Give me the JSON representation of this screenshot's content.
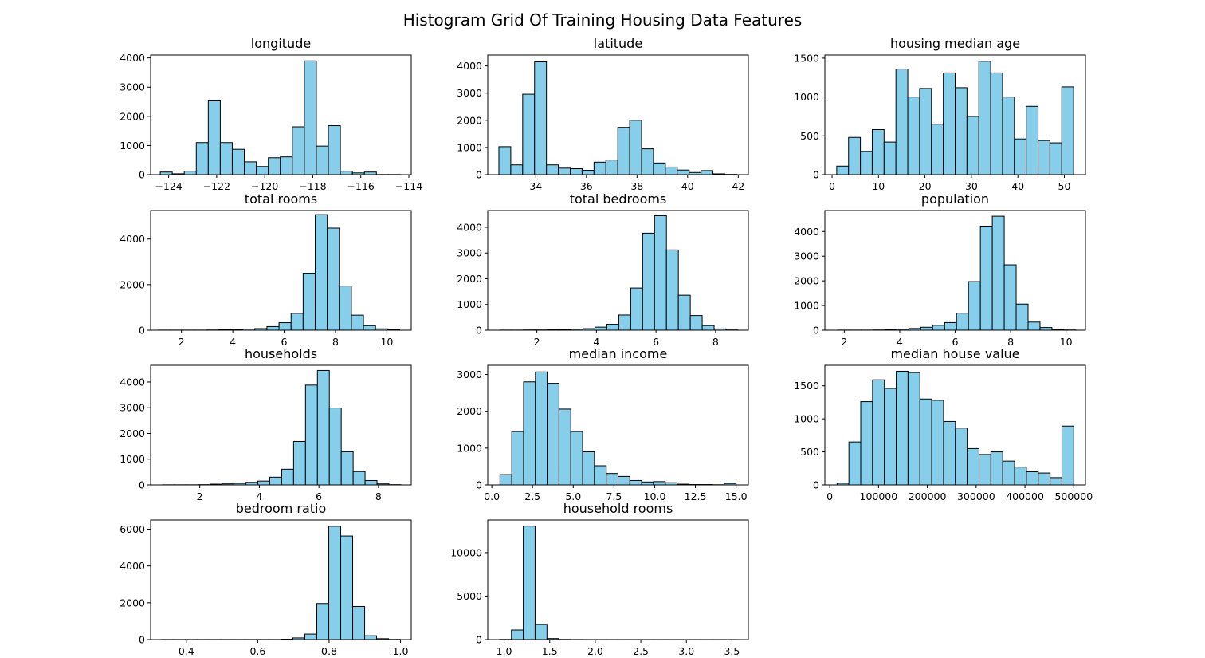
{
  "suptitle": "Histogram Grid Of Training Housing Data Features",
  "colors": {
    "bar_fill": "#87CEEB",
    "bar_edge": "#000000"
  },
  "chart_data": [
    {
      "type": "bar",
      "title": "longitude",
      "xlim": [
        -124.75,
        -113.9
      ],
      "ylim": [
        0,
        4100
      ],
      "xticks": [
        -124,
        -122,
        -120,
        -118,
        -116,
        -114
      ],
      "xtick_labels": [
        "−124",
        "−122",
        "−120",
        "−118",
        "−116",
        "−114"
      ],
      "yticks": [
        0,
        1000,
        2000,
        3000,
        4000
      ],
      "bin_start": -124.35,
      "bin_width": 0.5,
      "values": [
        90,
        30,
        120,
        1100,
        2530,
        1100,
        870,
        440,
        280,
        580,
        610,
        1640,
        3900,
        980,
        1680,
        120,
        60,
        90,
        5,
        5
      ]
    },
    {
      "type": "bar",
      "title": "latitude",
      "xlim": [
        32.1,
        42.4
      ],
      "ylim": [
        0,
        4400
      ],
      "xticks": [
        34,
        36,
        38,
        40,
        42
      ],
      "xtick_labels": [
        "34",
        "36",
        "38",
        "40",
        "42"
      ],
      "yticks": [
        0,
        1000,
        2000,
        3000,
        4000
      ],
      "bin_start": 32.54,
      "bin_width": 0.47,
      "values": [
        1030,
        360,
        2960,
        4150,
        360,
        240,
        220,
        160,
        460,
        540,
        1740,
        2000,
        950,
        430,
        280,
        170,
        80,
        150,
        30,
        10
      ]
    },
    {
      "type": "bar",
      "title": "housing median age",
      "xlim": [
        -1.55,
        54.55
      ],
      "ylim": [
        0,
        1540
      ],
      "xticks": [
        0,
        10,
        20,
        30,
        40,
        50
      ],
      "xtick_labels": [
        "0",
        "10",
        "20",
        "30",
        "40",
        "50"
      ],
      "yticks": [
        0,
        500,
        1000,
        1500
      ],
      "bin_start": 1,
      "bin_width": 2.55,
      "values": [
        110,
        480,
        300,
        580,
        420,
        1360,
        1000,
        1110,
        650,
        1310,
        1120,
        750,
        1460,
        1310,
        1000,
        460,
        880,
        440,
        410,
        1130
      ]
    },
    {
      "type": "bar",
      "title": "total rooms",
      "xlim": [
        0.8,
        10.95
      ],
      "ylim": [
        0,
        5250
      ],
      "xticks": [
        2,
        4,
        6,
        8,
        10
      ],
      "xtick_labels": [
        "2",
        "4",
        "6",
        "8",
        "10"
      ],
      "yticks": [
        0,
        2000,
        4000
      ],
      "bin_start": 1.1,
      "bin_width": 0.47,
      "values": [
        5,
        5,
        5,
        5,
        10,
        20,
        30,
        50,
        70,
        160,
        330,
        740,
        2500,
        5070,
        4480,
        1940,
        660,
        200,
        60,
        20
      ]
    },
    {
      "type": "bar",
      "title": "total bedrooms",
      "xlim": [
        0.35,
        9.1
      ],
      "ylim": [
        0,
        4650
      ],
      "xticks": [
        2,
        4,
        6,
        8
      ],
      "xtick_labels": [
        "2",
        "4",
        "6",
        "8"
      ],
      "yticks": [
        0,
        1000,
        2000,
        3000,
        4000
      ],
      "bin_start": 0.75,
      "bin_width": 0.4,
      "values": [
        5,
        5,
        10,
        10,
        20,
        30,
        40,
        60,
        120,
        230,
        590,
        1640,
        3770,
        4450,
        3120,
        1360,
        570,
        180,
        50,
        10
      ]
    },
    {
      "type": "bar",
      "title": "population",
      "xlim": [
        1.3,
        10.7
      ],
      "ylim": [
        0,
        4850
      ],
      "xticks": [
        2,
        4,
        6,
        8,
        10
      ],
      "xtick_labels": [
        "2",
        "4",
        "6",
        "8",
        "10"
      ],
      "yticks": [
        0,
        1000,
        2000,
        3000,
        4000
      ],
      "bin_start": 1.75,
      "bin_width": 0.43,
      "values": [
        5,
        5,
        5,
        10,
        20,
        40,
        70,
        120,
        200,
        310,
        690,
        1970,
        4220,
        4620,
        2650,
        1060,
        330,
        110,
        30,
        10
      ]
    },
    {
      "type": "bar",
      "title": "households",
      "xlim": [
        0.35,
        9.1
      ],
      "ylim": [
        0,
        4650
      ],
      "xticks": [
        2,
        4,
        6,
        8
      ],
      "xtick_labels": [
        "2",
        "4",
        "6",
        "8"
      ],
      "yticks": [
        0,
        1000,
        2000,
        3000,
        4000
      ],
      "bin_start": 0.75,
      "bin_width": 0.4,
      "values": [
        5,
        5,
        5,
        10,
        30,
        40,
        60,
        100,
        150,
        300,
        610,
        1690,
        3880,
        4450,
        2990,
        1290,
        520,
        170,
        40,
        10
      ]
    },
    {
      "type": "bar",
      "title": "median income",
      "xlim": [
        -0.25,
        15.75
      ],
      "ylim": [
        0,
        3250
      ],
      "xticks": [
        0.0,
        2.5,
        5.0,
        7.5,
        10.0,
        12.5,
        15.0
      ],
      "xtick_labels": [
        "0.0",
        "2.5",
        "5.0",
        "7.5",
        "10.0",
        "12.5",
        "15.0"
      ],
      "yticks": [
        0,
        1000,
        2000,
        3000
      ],
      "bin_start": 0.5,
      "bin_width": 0.725,
      "values": [
        280,
        1450,
        2800,
        3070,
        2760,
        2060,
        1450,
        900,
        520,
        310,
        230,
        120,
        80,
        90,
        60,
        20,
        10,
        10,
        5,
        40
      ]
    },
    {
      "type": "bar",
      "title": "median house value",
      "xlim": [
        -10000,
        524000
      ],
      "ylim": [
        0,
        1810
      ],
      "xticks": [
        0,
        100000,
        200000,
        300000,
        400000,
        500000
      ],
      "xtick_labels": [
        "0",
        "100000",
        "200000",
        "300000",
        "400000",
        "500000"
      ],
      "yticks": [
        0,
        500,
        1000,
        1500
      ],
      "bin_start": 15000,
      "bin_width": 24250,
      "values": [
        25,
        650,
        1260,
        1590,
        1460,
        1720,
        1700,
        1300,
        1280,
        960,
        860,
        550,
        460,
        500,
        360,
        270,
        200,
        180,
        110,
        890
      ]
    },
    {
      "type": "bar",
      "title": "bedroom ratio",
      "xlim": [
        0.3,
        1.03
      ],
      "ylim": [
        0,
        6500
      ],
      "xticks": [
        0.4,
        0.6,
        0.8,
        1.0
      ],
      "xtick_labels": [
        "0.4",
        "0.6",
        "0.8",
        "1.0"
      ],
      "yticks": [
        0,
        2000,
        4000,
        6000
      ],
      "bin_start": 0.33,
      "bin_width": 0.0335,
      "values": [
        5,
        5,
        5,
        5,
        5,
        5,
        5,
        5,
        5,
        5,
        20,
        90,
        300,
        1960,
        6160,
        5630,
        1800,
        210,
        50,
        10
      ]
    },
    {
      "type": "bar",
      "title": "household rooms",
      "xlim": [
        0.82,
        3.68
      ],
      "ylim": [
        0,
        13750
      ],
      "xticks": [
        1.0,
        1.5,
        2.0,
        2.5,
        3.0,
        3.5
      ],
      "xtick_labels": [
        "1.0",
        "1.5",
        "2.0",
        "2.5",
        "3.0",
        "3.5"
      ],
      "yticks": [
        0,
        5000,
        10000
      ],
      "bin_start": 0.95,
      "bin_width": 0.13,
      "values": [
        20,
        1100,
        13050,
        1760,
        120,
        20,
        10,
        5,
        5,
        5,
        5,
        5,
        5,
        5,
        5,
        5,
        5,
        5,
        5,
        5
      ]
    }
  ]
}
